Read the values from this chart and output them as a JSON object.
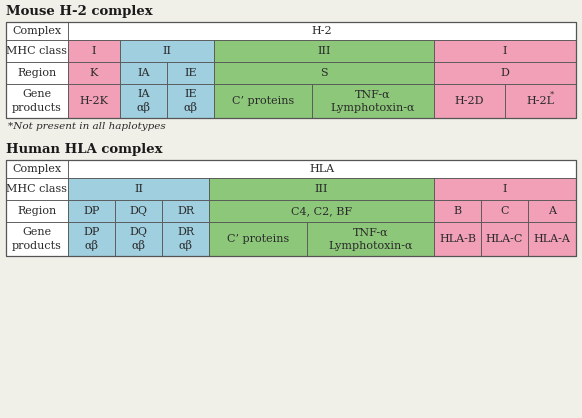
{
  "bg_color": "#f0efe8",
  "border_color": "#555555",
  "pink": "#f2a0b8",
  "blue": "#a0cfe0",
  "green": "#8dc87a",
  "white": "#ffffff",
  "title1": "Mouse H-2 complex",
  "title2": "Human HLA complex",
  "footnote": "*Not present in all haplotypes",
  "font_size": 8.0,
  "title_font_size": 9.5,
  "footnote_font_size": 7.5
}
